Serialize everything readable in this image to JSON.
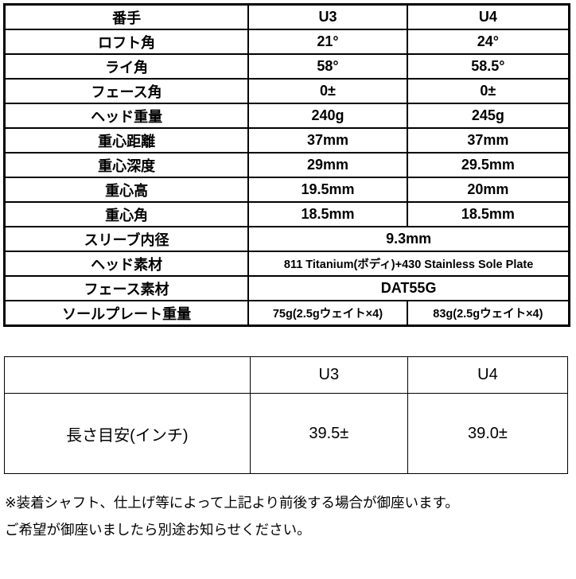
{
  "spec_table": {
    "header": {
      "label": "番手",
      "u3": "U3",
      "u4": "U4"
    },
    "rows": [
      {
        "label": "ロフト角",
        "u3": "21°",
        "u4": "24°"
      },
      {
        "label": "ライ角",
        "u3": "58°",
        "u4": "58.5°"
      },
      {
        "label": "フェース角",
        "u3": "0±",
        "u4": "0±"
      },
      {
        "label": "ヘッド重量",
        "u3": "240g",
        "u4": "245g"
      },
      {
        "label": "重心距離",
        "u3": "37mm",
        "u4": "37mm"
      },
      {
        "label": "重心深度",
        "u3": "29mm",
        "u4": "29.5mm"
      },
      {
        "label": "重心高",
        "u3": "19.5mm",
        "u4": "20mm"
      },
      {
        "label": "重心角",
        "u3": "18.5mm",
        "u4": "18.5mm"
      }
    ],
    "span_rows": [
      {
        "label": "スリーブ内径",
        "value": "9.3mm"
      },
      {
        "label": "ヘッド素材",
        "value": "811 Titanium(ボディ)+430 Stainless Sole Plate"
      },
      {
        "label": "フェース素材",
        "value": "DAT55G"
      }
    ],
    "sole_plate_row": {
      "label": "ソールプレート重量",
      "u3": "75g(2.5gウェイト×4)",
      "u4": "83g(2.5gウェイト×4)"
    }
  },
  "length_table": {
    "header": {
      "label": "",
      "u3": "U3",
      "u4": "U4"
    },
    "row": {
      "label": "長さ目安(インチ)",
      "u3": "39.5±",
      "u4": "39.0±"
    }
  },
  "notes": {
    "line1": "※装着シャフト、仕上げ等によって上記より前後する場合が御座います。",
    "line2": "ご希望が御座いましたら別途お知らせください。"
  },
  "colors": {
    "background": "#ffffff",
    "border": "#000000",
    "text": "#000000"
  }
}
